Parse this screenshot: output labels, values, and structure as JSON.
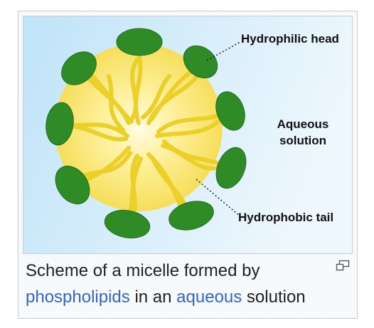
{
  "figure": {
    "labels": {
      "hydrophilic_head": "Hydrophilic head",
      "aqueous_line1": "Aqueous",
      "aqueous_line2": "solution",
      "hydrophobic_tail": "Hydrophobic tail"
    },
    "caption": {
      "text1": "Scheme of a micelle formed by",
      "link1": "phospholipids",
      "text2": " in an ",
      "link2": "aqueous",
      "text3": " solution"
    },
    "icons": {
      "enlarge": "magnify-clip-icon"
    },
    "colors": {
      "head_fill": "#2f8b26",
      "tail_color": "#ecd02a",
      "core_center": "#fff9d4",
      "core_edge": "#f2d94a",
      "background_start": "#bfe3f8",
      "background_end": "#eef7fd",
      "link_color": "#3366cc"
    }
  }
}
